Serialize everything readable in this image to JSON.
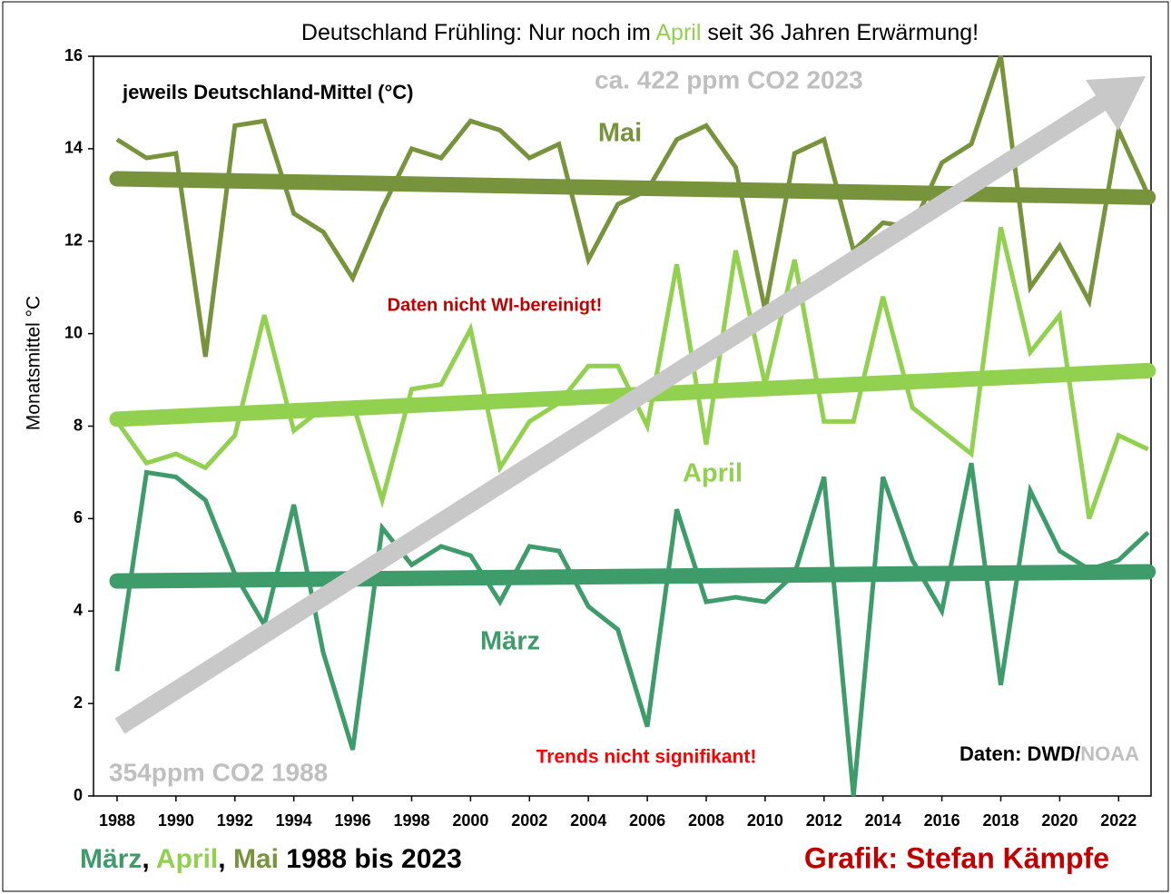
{
  "chart_data": {
    "type": "line",
    "title": [
      "Deutschland Frühling: Nur noch im ",
      "April",
      " seit 36 Jahren Erwärmung!"
    ],
    "y_label": "Monatsmittel °C",
    "annotations": {
      "subtitle": "jeweils Deutschland-Mittel (°C)",
      "co2_end": "ca. 422 ppm CO2 2023",
      "co2_start": "354ppm CO2 1988",
      "wi_note": "Daten nicht WI-bereinigt!",
      "trend_note": "Trends nicht signifikant!",
      "source": [
        "Daten: DWD/",
        "NOAA"
      ],
      "footer_sep": [
        ", ",
        ", ",
        " 1988 bis 2023"
      ],
      "credit": "Grafik: Stefan Kämpfe"
    },
    "x": [
      1988,
      1989,
      1990,
      1991,
      1992,
      1993,
      1994,
      1995,
      1996,
      1997,
      1998,
      1999,
      2000,
      2001,
      2002,
      2003,
      2004,
      2005,
      2006,
      2007,
      2008,
      2009,
      2010,
      2011,
      2012,
      2013,
      2014,
      2015,
      2016,
      2017,
      2018,
      2019,
      2020,
      2021,
      2022,
      2023
    ],
    "xlim": [
      1987.2,
      2023.1
    ],
    "xticks": [
      1988,
      1990,
      1992,
      1994,
      1996,
      1998,
      2000,
      2002,
      2004,
      2006,
      2008,
      2010,
      2012,
      2014,
      2016,
      2018,
      2020,
      2022
    ],
    "ylim": [
      0,
      16
    ],
    "yticks": [
      0,
      2,
      4,
      6,
      8,
      10,
      12,
      14,
      16
    ],
    "grid": false,
    "series": [
      {
        "name": "März",
        "color": "#3d9c6a",
        "values": [
          2.7,
          7.0,
          6.9,
          6.4,
          4.8,
          3.7,
          6.3,
          3.1,
          1.0,
          5.8,
          5.0,
          5.4,
          5.2,
          4.2,
          5.4,
          5.3,
          4.1,
          3.6,
          1.5,
          6.2,
          4.2,
          4.3,
          4.2,
          4.8,
          6.9,
          0.0,
          6.9,
          5.1,
          4.0,
          7.2,
          2.4,
          6.6,
          5.3,
          4.9,
          5.1,
          5.7
        ],
        "trend": [
          4.65,
          4.85
        ]
      },
      {
        "name": "April",
        "color": "#92d050",
        "values": [
          8.1,
          7.2,
          7.4,
          7.1,
          7.8,
          10.4,
          7.9,
          8.4,
          8.5,
          6.4,
          8.8,
          8.9,
          10.1,
          7.1,
          8.1,
          8.5,
          9.3,
          9.3,
          8.0,
          11.5,
          7.6,
          11.8,
          8.9,
          11.6,
          8.1,
          8.1,
          10.8,
          8.4,
          7.9,
          7.4,
          12.3,
          9.6,
          10.4,
          6.0,
          7.8,
          7.5
        ],
        "trend": [
          8.15,
          9.2
        ]
      },
      {
        "name": "Mai",
        "color": "#77933c",
        "values": [
          14.2,
          13.8,
          13.9,
          9.5,
          14.5,
          14.6,
          12.6,
          12.2,
          11.2,
          12.7,
          14.0,
          13.8,
          14.6,
          14.4,
          13.8,
          14.1,
          11.6,
          12.8,
          13.1,
          14.2,
          14.5,
          13.6,
          10.5,
          13.9,
          14.2,
          11.8,
          12.4,
          12.3,
          13.7,
          14.1,
          16.0,
          11.0,
          11.9,
          10.7,
          14.4,
          13.0
        ],
        "trend": [
          13.35,
          12.95
        ]
      }
    ]
  }
}
